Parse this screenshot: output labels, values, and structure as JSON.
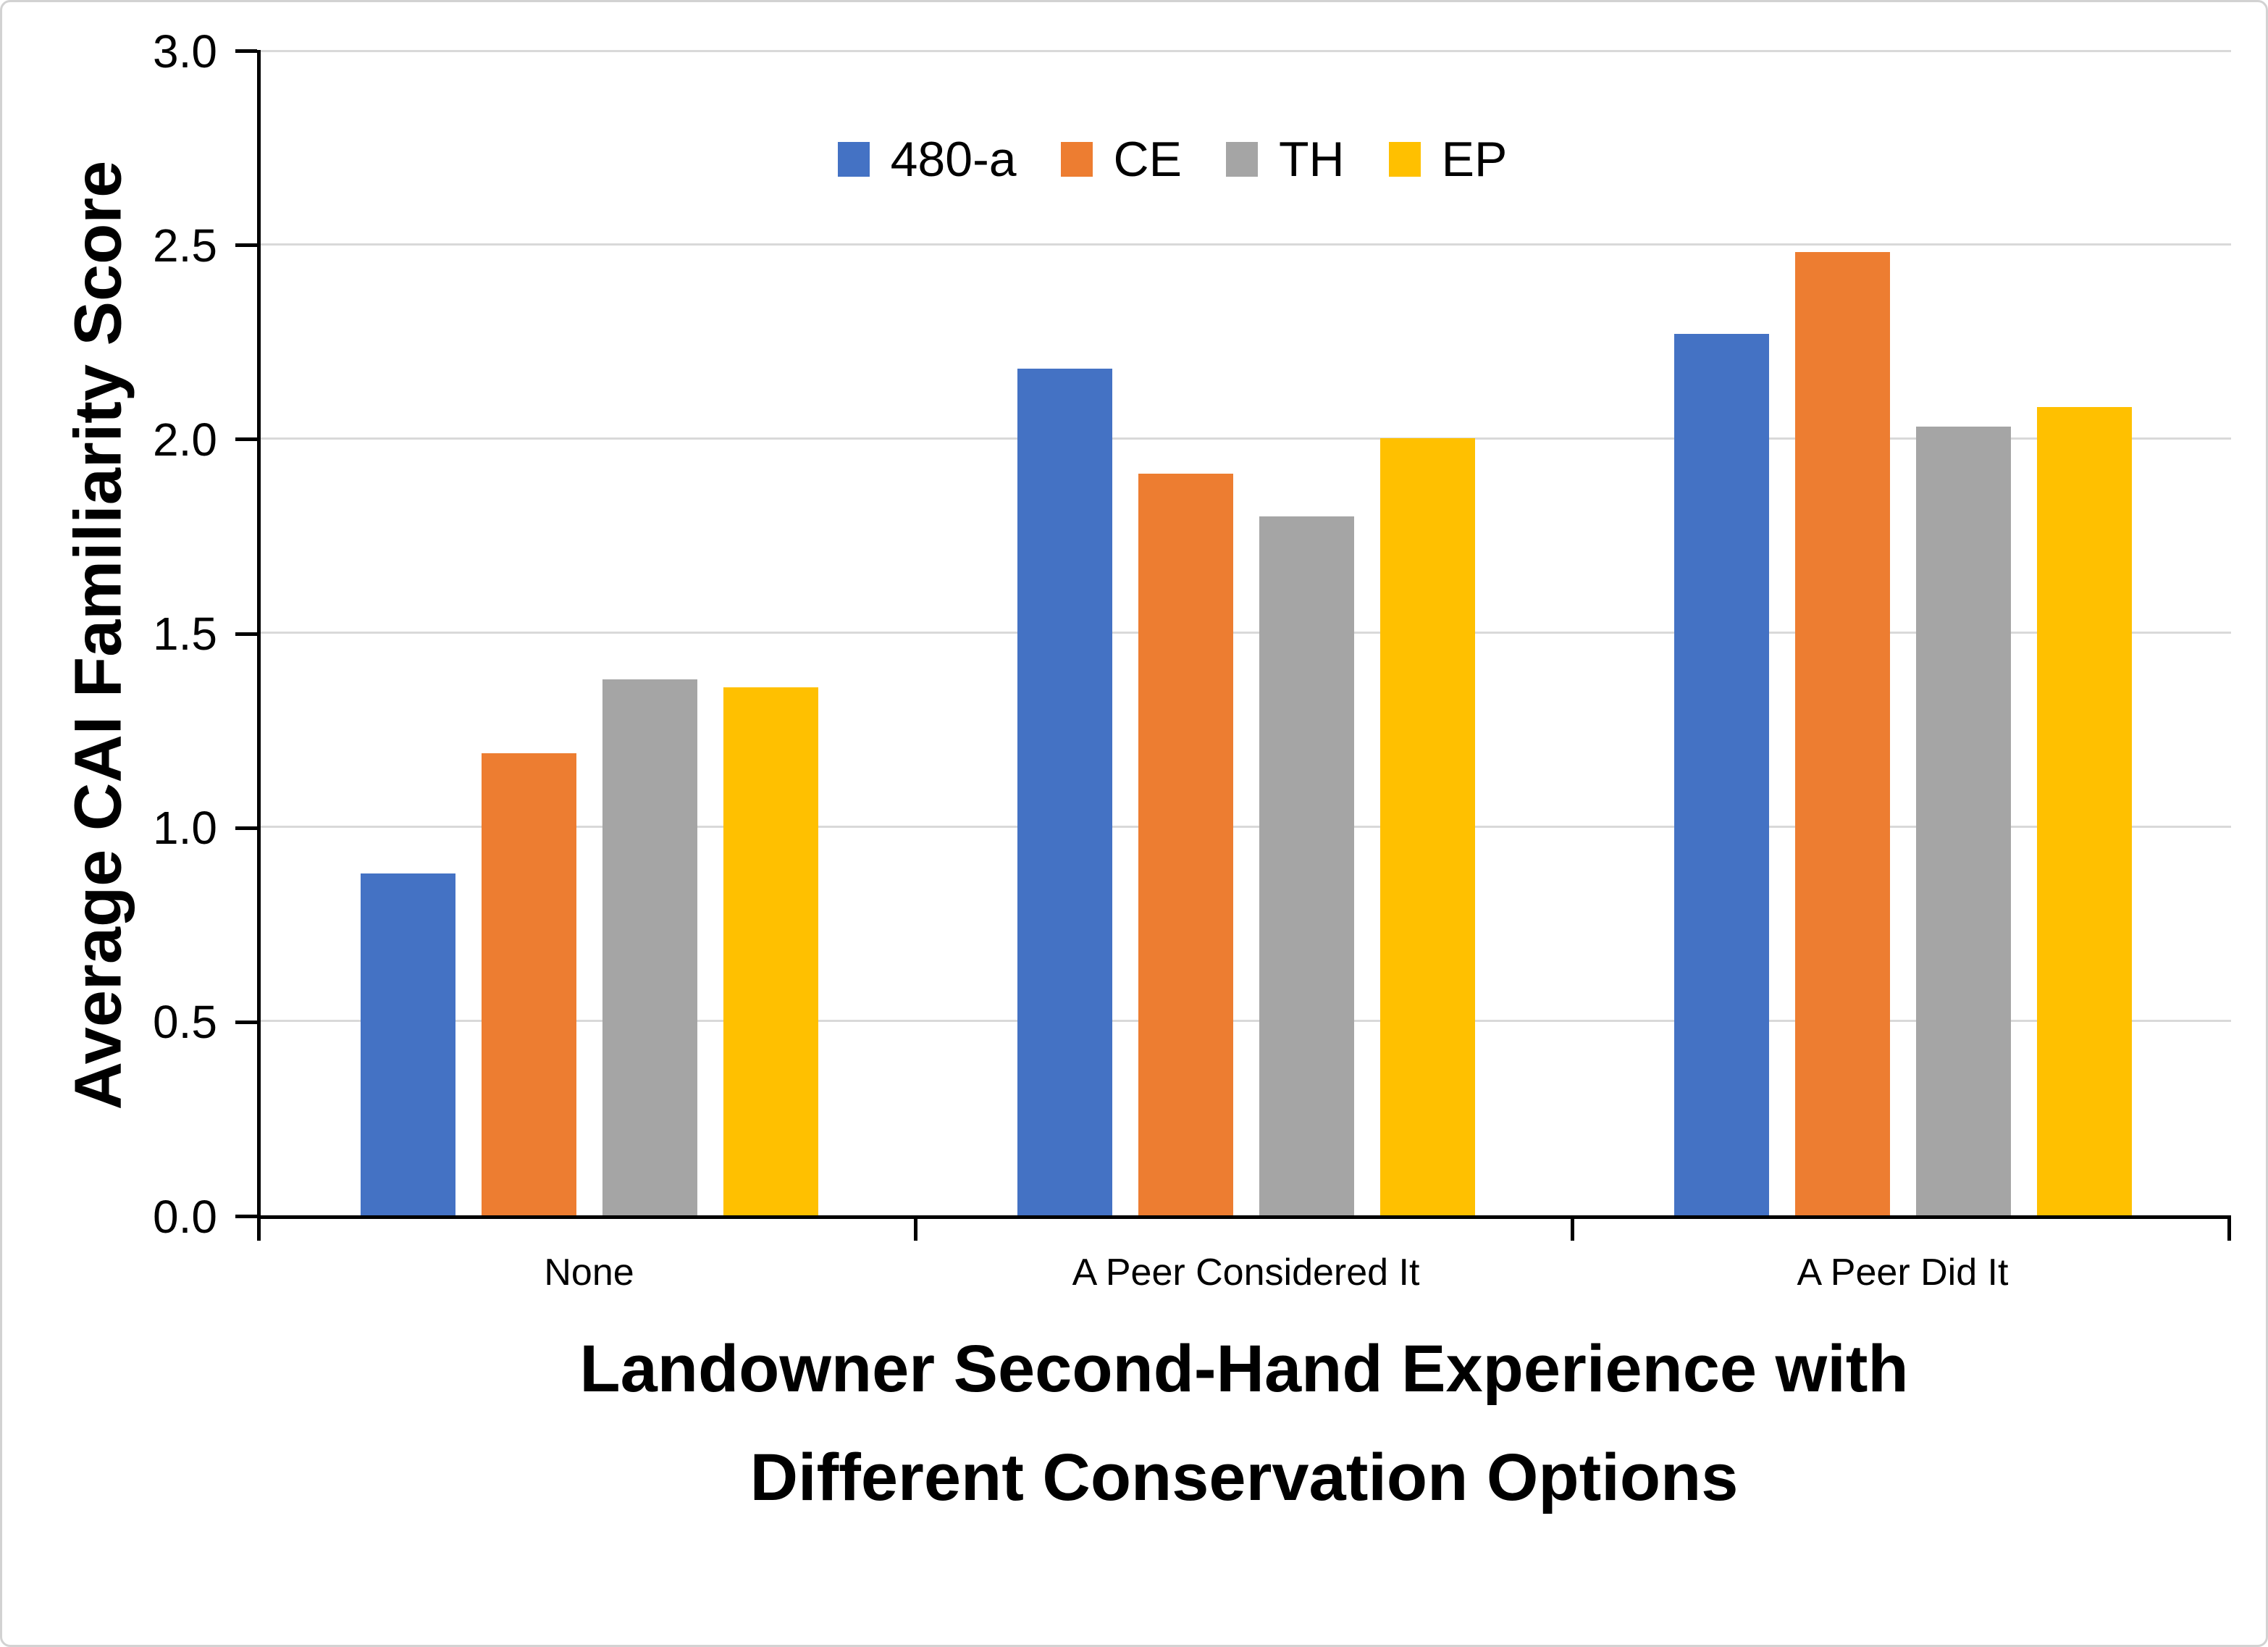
{
  "chart_data": {
    "type": "bar",
    "title": "",
    "ylabel": "Average CAI Familiarity Score",
    "xlabel": "Landowner Second-Hand Experience with Different Conservation Options",
    "xlabel_lines": [
      "Landowner Second-Hand Experience with",
      "Different Conservation Options"
    ],
    "categories": [
      "None",
      "A Peer Considered It",
      "A Peer Did It"
    ],
    "series": [
      {
        "name": "480-a",
        "color": "#4472C4",
        "values": [
          0.88,
          2.18,
          2.27
        ]
      },
      {
        "name": "CE",
        "color": "#ED7D31",
        "values": [
          1.19,
          1.91,
          2.48
        ]
      },
      {
        "name": "TH",
        "color": "#A5A5A5",
        "values": [
          1.38,
          1.8,
          2.03
        ]
      },
      {
        "name": "EP",
        "color": "#FFC000",
        "values": [
          1.36,
          2.0,
          2.08
        ]
      }
    ],
    "ylim": [
      0,
      3
    ],
    "ytick_step": 0.5,
    "ytick_labels": [
      "0.0",
      "0.5",
      "1.0",
      "1.5",
      "2.0",
      "2.5",
      "3.0"
    ],
    "grid": true,
    "legend_position": "top-center",
    "colors": {
      "gridline": "#D9D9D9",
      "axis": "#000000",
      "background": "#FFFFFF",
      "chart_border": "#D2D2D2"
    }
  }
}
